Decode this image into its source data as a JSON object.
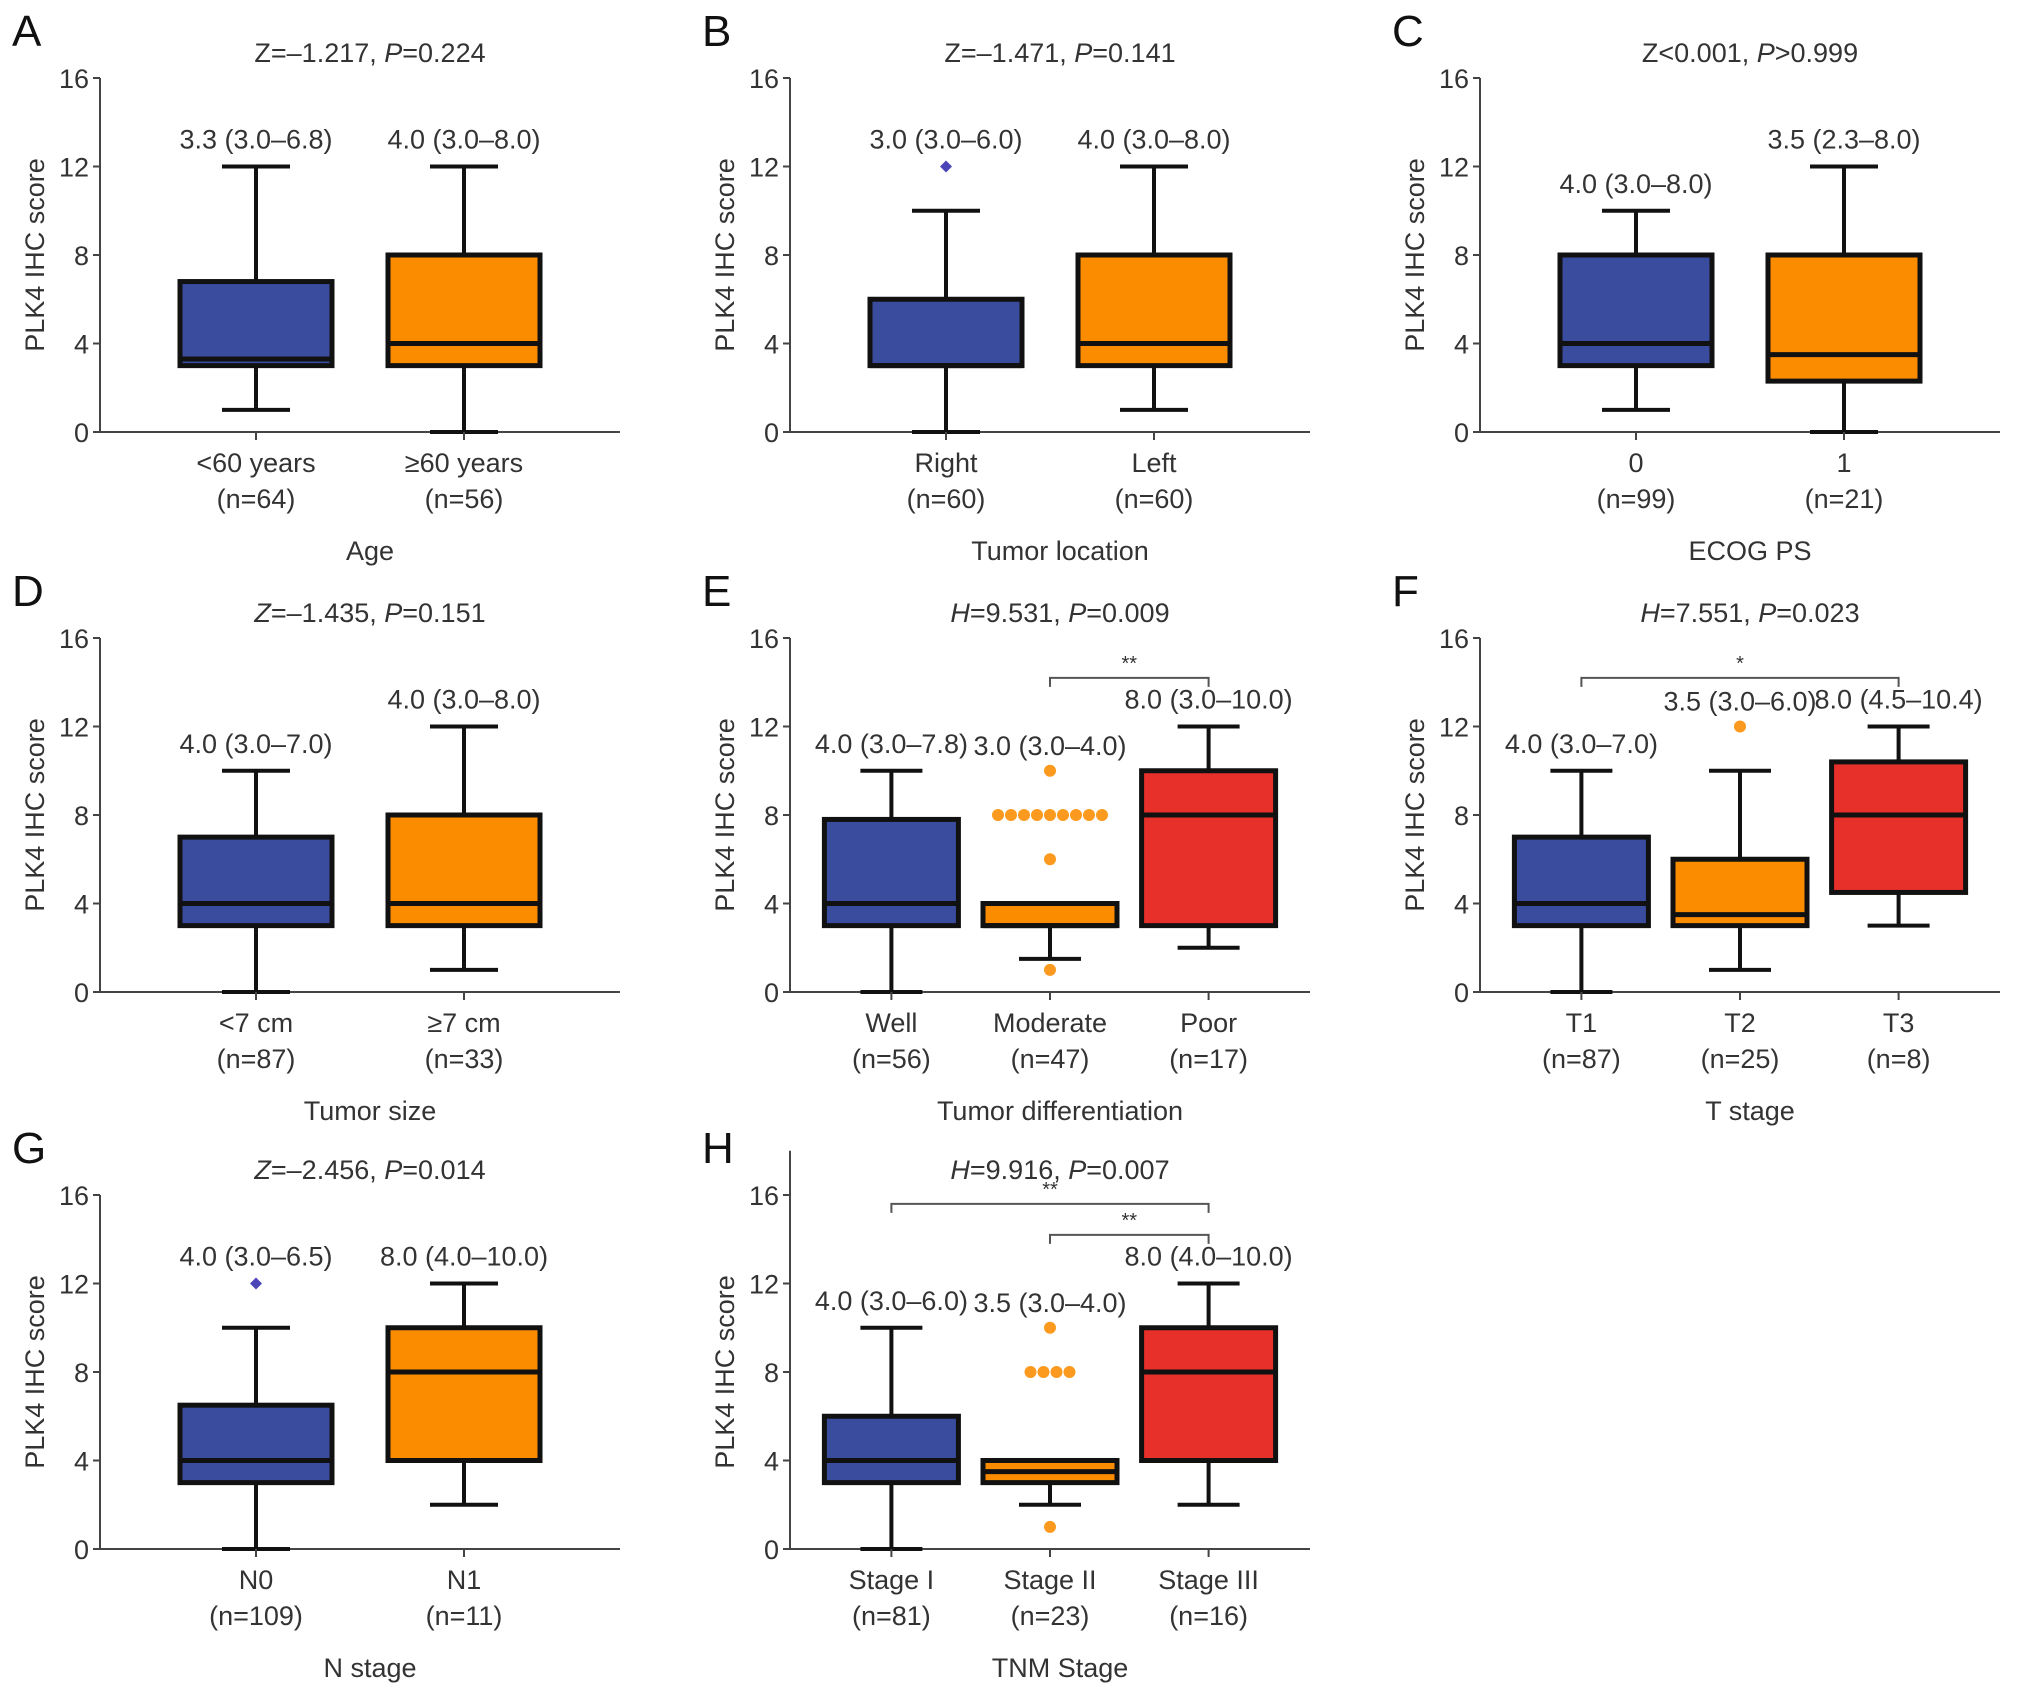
{
  "chart_data": [
    {
      "panel": "A",
      "type": "box",
      "ylabel": "PLK4 IHC score",
      "xlabel": "Age",
      "ylim": [
        0,
        16
      ],
      "yticks": [
        0,
        4,
        8,
        12,
        16
      ],
      "stat": {
        "letter": "Z",
        "value": "=–1.217, ",
        "p_letter": "P",
        "p_value": "=0.224"
      },
      "groups": [
        {
          "label": "<60 years",
          "n": "(n=64)",
          "summary": "3.3 (3.0–6.8)",
          "color": "#3a4c9e",
          "whisker_low": 1,
          "q1": 3.0,
          "median": 3.3,
          "q3": 6.8,
          "whisker_high": 12,
          "outliers": []
        },
        {
          "label": "≥60 years",
          "n": "(n=56)",
          "summary": "4.0 (3.0–8.0)",
          "color": "#fb8c00",
          "whisker_low": 0,
          "q1": 3.0,
          "median": 4.0,
          "q3": 8.0,
          "whisker_high": 12,
          "outliers": []
        }
      ],
      "brackets": []
    },
    {
      "panel": "B",
      "type": "box",
      "ylabel": "PLK4 IHC score",
      "xlabel": "Tumor location",
      "ylim": [
        0,
        16
      ],
      "yticks": [
        0,
        4,
        8,
        12,
        16
      ],
      "stat": {
        "letter": "Z",
        "value": "=–1.471, ",
        "p_letter": "P",
        "p_value": "=0.141"
      },
      "groups": [
        {
          "label": "Right",
          "n": "(n=60)",
          "summary": "3.0 (3.0–6.0)",
          "color": "#3a4c9e",
          "whisker_low": 0,
          "q1": 3.0,
          "median": 3.0,
          "q3": 6.0,
          "whisker_high": 10,
          "outliers": [
            12
          ],
          "outlier_shape": "diamond"
        },
        {
          "label": "Left",
          "n": "(n=60)",
          "summary": "4.0 (3.0–8.0)",
          "color": "#fb8c00",
          "whisker_low": 1,
          "q1": 3.0,
          "median": 4.0,
          "q3": 8.0,
          "whisker_high": 12,
          "outliers": []
        }
      ],
      "brackets": []
    },
    {
      "panel": "C",
      "type": "box",
      "ylabel": "PLK4 IHC score",
      "xlabel": "ECOG PS",
      "ylim": [
        0,
        16
      ],
      "yticks": [
        0,
        4,
        8,
        12,
        16
      ],
      "stat": {
        "letter": "Z",
        "value": "<0.001, ",
        "p_letter": "P",
        "p_value": ">0.999"
      },
      "groups": [
        {
          "label": "0",
          "n": "(n=99)",
          "summary": "4.0 (3.0–8.0)",
          "color": "#3a4c9e",
          "whisker_low": 1,
          "q1": 3.0,
          "median": 4.0,
          "q3": 8.0,
          "whisker_high": 10,
          "outliers": []
        },
        {
          "label": "1",
          "n": "(n=21)",
          "summary": "3.5 (2.3–8.0)",
          "color": "#fb8c00",
          "whisker_low": 0,
          "q1": 2.3,
          "median": 3.5,
          "q3": 8.0,
          "whisker_high": 12,
          "outliers": []
        }
      ],
      "brackets": []
    },
    {
      "panel": "D",
      "type": "box",
      "ylabel": "PLK4 IHC score",
      "xlabel": "Tumor size",
      "ylim": [
        0,
        16
      ],
      "yticks": [
        0,
        4,
        8,
        12,
        16
      ],
      "stat": {
        "letter": "Z",
        "value": "=–1.435, ",
        "p_letter": "P",
        "p_value": "=0.151"
      },
      "groups": [
        {
          "label": "<7 cm",
          "n": "(n=87)",
          "summary": "4.0 (3.0–7.0)",
          "color": "#3a4c9e",
          "whisker_low": 0,
          "q1": 3.0,
          "median": 4.0,
          "q3": 7.0,
          "whisker_high": 10,
          "outliers": []
        },
        {
          "label": "≥7 cm",
          "n": "(n=33)",
          "summary": "4.0 (3.0–8.0)",
          "color": "#fb8c00",
          "whisker_low": 1,
          "q1": 3.0,
          "median": 4.0,
          "q3": 8.0,
          "whisker_high": 12,
          "outliers": []
        }
      ],
      "brackets": []
    },
    {
      "panel": "E",
      "type": "box",
      "ylabel": "PLK4 IHC score",
      "xlabel": "Tumor differentiation",
      "ylim": [
        0,
        16
      ],
      "yticks": [
        0,
        4,
        8,
        12,
        16
      ],
      "stat": {
        "letter": "H",
        "value": "=9.531, ",
        "p_letter": "P",
        "p_value": "=0.009"
      },
      "groups": [
        {
          "label": "Well",
          "n": "(n=56)",
          "summary": "4.0 (3.0–7.8)",
          "color": "#3a4c9e",
          "whisker_low": 0,
          "q1": 3.0,
          "median": 4.0,
          "q3": 7.8,
          "whisker_high": 10,
          "outliers": []
        },
        {
          "label": "Moderate",
          "n": "(n=47)",
          "summary": "3.0 (3.0–4.0)",
          "color": "#fb8c00",
          "whisker_low": 1.5,
          "q1": 3.0,
          "median": 3.0,
          "q3": 4.0,
          "whisker_high": 4.0,
          "outliers": [
            10,
            8,
            8,
            8,
            8,
            8,
            8,
            8,
            8,
            8,
            6,
            1
          ],
          "outlier_shape": "circle"
        },
        {
          "label": "Poor",
          "n": "(n=17)",
          "summary": "8.0 (3.0–10.0)",
          "color": "#e8302a",
          "whisker_low": 2,
          "q1": 3.0,
          "median": 8.0,
          "q3": 10.0,
          "whisker_high": 12,
          "outliers": []
        }
      ],
      "brackets": [
        {
          "from": 1,
          "to": 2,
          "level": 14.2,
          "label": "**"
        }
      ]
    },
    {
      "panel": "F",
      "type": "box",
      "ylabel": "PLK4 IHC score",
      "xlabel": "T stage",
      "ylim": [
        0,
        16
      ],
      "yticks": [
        0,
        4,
        8,
        12,
        16
      ],
      "stat": {
        "letter": "H",
        "value": "=7.551, ",
        "p_letter": "P",
        "p_value": "=0.023"
      },
      "groups": [
        {
          "label": "T1",
          "n": "(n=87)",
          "summary": "4.0 (3.0–7.0)",
          "color": "#3a4c9e",
          "whisker_low": 0,
          "q1": 3.0,
          "median": 4.0,
          "q3": 7.0,
          "whisker_high": 10,
          "outliers": []
        },
        {
          "label": "T2",
          "n": "(n=25)",
          "summary": "3.5 (3.0–6.0)",
          "color": "#fb8c00",
          "whisker_low": 1,
          "q1": 3.0,
          "median": 3.5,
          "q3": 6.0,
          "whisker_high": 10,
          "outliers": [
            12
          ],
          "outlier_shape": "circle"
        },
        {
          "label": "T3",
          "n": "(n=8)",
          "summary": "8.0 (4.5–10.4)",
          "color": "#e8302a",
          "whisker_low": 3,
          "q1": 4.5,
          "median": 8.0,
          "q3": 10.4,
          "whisker_high": 12,
          "outliers": []
        }
      ],
      "brackets": [
        {
          "from": 0,
          "to": 2,
          "level": 14.2,
          "label": "*"
        }
      ]
    },
    {
      "panel": "G",
      "type": "box",
      "ylabel": "PLK4 IHC score",
      "xlabel": "N stage",
      "ylim": [
        0,
        16
      ],
      "yticks": [
        0,
        4,
        8,
        12,
        16
      ],
      "stat": {
        "letter": "Z",
        "value": "=–2.456, ",
        "p_letter": "P",
        "p_value": "=0.014"
      },
      "groups": [
        {
          "label": "N0",
          "n": "(n=109)",
          "summary": "4.0 (3.0–6.5)",
          "color": "#3a4c9e",
          "whisker_low": 0,
          "q1": 3.0,
          "median": 4.0,
          "q3": 6.5,
          "whisker_high": 10,
          "outliers": [
            12
          ],
          "outlier_shape": "diamond"
        },
        {
          "label": "N1",
          "n": "(n=11)",
          "summary": "8.0 (4.0–10.0)",
          "color": "#fb8c00",
          "whisker_low": 2,
          "q1": 4.0,
          "median": 8.0,
          "q3": 10.0,
          "whisker_high": 12,
          "outliers": []
        }
      ],
      "brackets": []
    },
    {
      "panel": "H",
      "type": "box",
      "ylabel": "PLK4 IHC score",
      "xlabel": "TNM Stage",
      "ylim": [
        0,
        18
      ],
      "yticks": [
        0,
        4,
        8,
        12,
        16
      ],
      "stat": {
        "letter": "H",
        "value": "=9.916, ",
        "p_letter": "P",
        "p_value": "=0.007"
      },
      "groups": [
        {
          "label": "Stage I",
          "n": "(n=81)",
          "summary": "4.0 (3.0–6.0)",
          "color": "#3a4c9e",
          "whisker_low": 0,
          "q1": 3.0,
          "median": 4.0,
          "q3": 6.0,
          "whisker_high": 10,
          "outliers": []
        },
        {
          "label": "Stage II",
          "n": "(n=23)",
          "summary": "3.5 (3.0–4.0)",
          "color": "#fb8c00",
          "whisker_low": 2,
          "q1": 3.0,
          "median": 3.5,
          "q3": 4.0,
          "whisker_high": 4.0,
          "outliers": [
            10,
            8,
            8,
            8,
            8,
            1
          ],
          "outlier_shape": "circle"
        },
        {
          "label": "Stage III",
          "n": "(n=16)",
          "summary": "8.0 (4.0–10.0)",
          "color": "#e8302a",
          "whisker_low": 2,
          "q1": 4.0,
          "median": 8.0,
          "q3": 10.0,
          "whisker_high": 12,
          "outliers": []
        }
      ],
      "brackets": [
        {
          "from": 0,
          "to": 2,
          "level": 15.6,
          "label": "**"
        },
        {
          "from": 1,
          "to": 2,
          "level": 14.2,
          "label": "**"
        }
      ]
    }
  ]
}
